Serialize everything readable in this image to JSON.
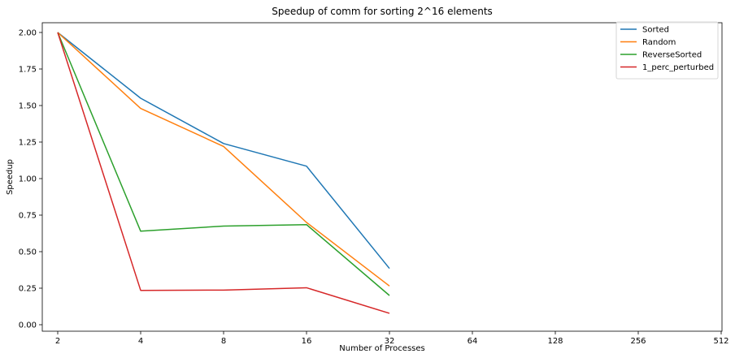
{
  "chart_data": {
    "type": "line",
    "title": "Speedup of comm for sorting 2^16 elements",
    "xlabel": "Number of Processes",
    "ylabel": "Speedup",
    "x": [
      2,
      4,
      8,
      16,
      32
    ],
    "x_ticks": [
      "2",
      "4",
      "8",
      "16",
      "32",
      "64",
      "128",
      "256",
      "512"
    ],
    "y_ticks": [
      "0.00",
      "0.25",
      "0.50",
      "0.75",
      "1.00",
      "1.25",
      "1.50",
      "1.75",
      "2.00"
    ],
    "xscale": "log2",
    "xlim": [
      2,
      512
    ],
    "ylim": [
      0,
      2.0
    ],
    "grid": false,
    "legend_position": "top-right",
    "series": [
      {
        "name": "Sorted",
        "color": "#1f77b4",
        "values": [
          2.0,
          1.55,
          1.24,
          1.085,
          0.385
        ]
      },
      {
        "name": "Random",
        "color": "#ff7f0e",
        "values": [
          2.0,
          1.48,
          1.22,
          0.7,
          0.265
        ]
      },
      {
        "name": "ReverseSorted",
        "color": "#2ca02c",
        "values": [
          2.0,
          0.64,
          0.675,
          0.685,
          0.2
        ]
      },
      {
        "name": "1_perc_perturbed",
        "color": "#d62728",
        "values": [
          2.0,
          0.235,
          0.237,
          0.253,
          0.078
        ]
      }
    ]
  }
}
